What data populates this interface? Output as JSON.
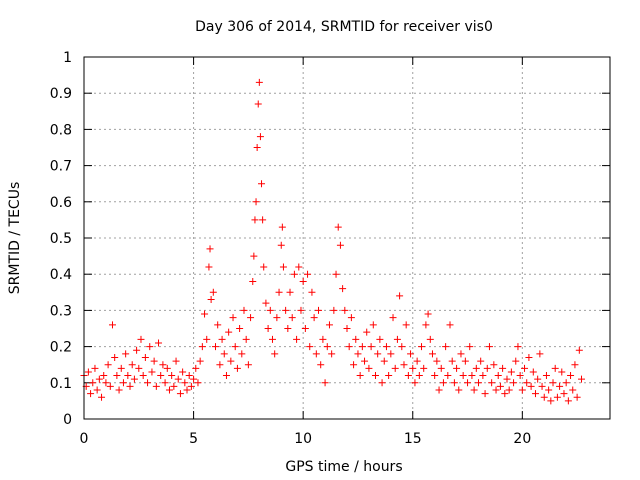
{
  "chart_data": {
    "type": "scatter",
    "title": "Day 306 of 2014, SRMTID for receiver vis0",
    "xlabel": "GPS time / hours",
    "ylabel": "SRMTID / TECUs",
    "xlim": [
      0,
      24
    ],
    "ylim": [
      0,
      1
    ],
    "xticks": [
      0,
      5,
      10,
      15,
      20
    ],
    "yticks": [
      0,
      0.1,
      0.2,
      0.3,
      0.4,
      0.5,
      0.6,
      0.7,
      0.8,
      0.9,
      1
    ],
    "xtick_labels": [
      "0",
      "5",
      "10",
      "15",
      "20"
    ],
    "ytick_labels": [
      "0",
      "0.1",
      "0.2",
      "0.3",
      "0.4",
      "0.5",
      "0.6",
      "0.7",
      "0.8",
      "0.9",
      "1"
    ],
    "grid": true,
    "marker": "+",
    "color": "#ff0000",
    "series": [
      {
        "name": "vis0",
        "points": [
          [
            0.0,
            0.12
          ],
          [
            0.1,
            0.09
          ],
          [
            0.2,
            0.13
          ],
          [
            0.3,
            0.07
          ],
          [
            0.4,
            0.1
          ],
          [
            0.5,
            0.14
          ],
          [
            0.6,
            0.08
          ],
          [
            0.7,
            0.11
          ],
          [
            0.8,
            0.06
          ],
          [
            0.9,
            0.12
          ],
          [
            1.0,
            0.1
          ],
          [
            1.1,
            0.15
          ],
          [
            1.2,
            0.09
          ],
          [
            1.3,
            0.26
          ],
          [
            1.4,
            0.17
          ],
          [
            1.5,
            0.12
          ],
          [
            1.6,
            0.08
          ],
          [
            1.7,
            0.14
          ],
          [
            1.8,
            0.1
          ],
          [
            1.9,
            0.18
          ],
          [
            2.0,
            0.12
          ],
          [
            2.1,
            0.09
          ],
          [
            2.2,
            0.15
          ],
          [
            2.3,
            0.11
          ],
          [
            2.4,
            0.19
          ],
          [
            2.5,
            0.14
          ],
          [
            2.6,
            0.22
          ],
          [
            2.7,
            0.12
          ],
          [
            2.8,
            0.17
          ],
          [
            2.9,
            0.1
          ],
          [
            3.0,
            0.2
          ],
          [
            3.1,
            0.13
          ],
          [
            3.2,
            0.16
          ],
          [
            3.3,
            0.09
          ],
          [
            3.4,
            0.21
          ],
          [
            3.5,
            0.12
          ],
          [
            3.6,
            0.15
          ],
          [
            3.7,
            0.1
          ],
          [
            3.8,
            0.14
          ],
          [
            3.9,
            0.08
          ],
          [
            4.0,
            0.12
          ],
          [
            4.1,
            0.09
          ],
          [
            4.2,
            0.16
          ],
          [
            4.3,
            0.11
          ],
          [
            4.4,
            0.07
          ],
          [
            4.5,
            0.13
          ],
          [
            4.6,
            0.1
          ],
          [
            4.7,
            0.08
          ],
          [
            4.8,
            0.12
          ],
          [
            4.9,
            0.09
          ],
          [
            5.0,
            0.11
          ],
          [
            5.1,
            0.14
          ],
          [
            5.2,
            0.1
          ],
          [
            5.3,
            0.16
          ],
          [
            5.4,
            0.2
          ],
          [
            5.5,
            0.29
          ],
          [
            5.6,
            0.22
          ],
          [
            5.7,
            0.42
          ],
          [
            5.75,
            0.47
          ],
          [
            5.8,
            0.33
          ],
          [
            5.9,
            0.35
          ],
          [
            6.0,
            0.2
          ],
          [
            6.1,
            0.26
          ],
          [
            6.2,
            0.15
          ],
          [
            6.3,
            0.22
          ],
          [
            6.4,
            0.18
          ],
          [
            6.5,
            0.12
          ],
          [
            6.6,
            0.24
          ],
          [
            6.7,
            0.16
          ],
          [
            6.8,
            0.28
          ],
          [
            6.9,
            0.2
          ],
          [
            7.0,
            0.14
          ],
          [
            7.1,
            0.25
          ],
          [
            7.2,
            0.18
          ],
          [
            7.3,
            0.3
          ],
          [
            7.4,
            0.22
          ],
          [
            7.5,
            0.15
          ],
          [
            7.6,
            0.28
          ],
          [
            7.7,
            0.38
          ],
          [
            7.75,
            0.45
          ],
          [
            7.8,
            0.55
          ],
          [
            7.85,
            0.6
          ],
          [
            7.9,
            0.75
          ],
          [
            7.95,
            0.87
          ],
          [
            8.0,
            0.93
          ],
          [
            8.05,
            0.78
          ],
          [
            8.1,
            0.65
          ],
          [
            8.15,
            0.55
          ],
          [
            8.2,
            0.42
          ],
          [
            8.3,
            0.32
          ],
          [
            8.4,
            0.25
          ],
          [
            8.5,
            0.3
          ],
          [
            8.6,
            0.22
          ],
          [
            8.7,
            0.18
          ],
          [
            8.8,
            0.28
          ],
          [
            8.9,
            0.35
          ],
          [
            9.0,
            0.48
          ],
          [
            9.05,
            0.53
          ],
          [
            9.1,
            0.42
          ],
          [
            9.2,
            0.3
          ],
          [
            9.3,
            0.25
          ],
          [
            9.4,
            0.35
          ],
          [
            9.5,
            0.28
          ],
          [
            9.6,
            0.4
          ],
          [
            9.7,
            0.22
          ],
          [
            9.8,
            0.42
          ],
          [
            9.9,
            0.3
          ],
          [
            10.0,
            0.38
          ],
          [
            10.1,
            0.25
          ],
          [
            10.2,
            0.4
          ],
          [
            10.3,
            0.2
          ],
          [
            10.4,
            0.35
          ],
          [
            10.5,
            0.28
          ],
          [
            10.6,
            0.18
          ],
          [
            10.7,
            0.3
          ],
          [
            10.8,
            0.15
          ],
          [
            10.9,
            0.22
          ],
          [
            11.0,
            0.1
          ],
          [
            11.1,
            0.2
          ],
          [
            11.2,
            0.26
          ],
          [
            11.3,
            0.18
          ],
          [
            11.4,
            0.3
          ],
          [
            11.5,
            0.4
          ],
          [
            11.6,
            0.53
          ],
          [
            11.7,
            0.48
          ],
          [
            11.8,
            0.36
          ],
          [
            11.9,
            0.3
          ],
          [
            12.0,
            0.25
          ],
          [
            12.1,
            0.2
          ],
          [
            12.2,
            0.28
          ],
          [
            12.3,
            0.15
          ],
          [
            12.4,
            0.22
          ],
          [
            12.5,
            0.18
          ],
          [
            12.6,
            0.12
          ],
          [
            12.7,
            0.2
          ],
          [
            12.8,
            0.16
          ],
          [
            12.9,
            0.24
          ],
          [
            13.0,
            0.14
          ],
          [
            13.1,
            0.2
          ],
          [
            13.2,
            0.26
          ],
          [
            13.3,
            0.12
          ],
          [
            13.4,
            0.18
          ],
          [
            13.5,
            0.22
          ],
          [
            13.6,
            0.1
          ],
          [
            13.7,
            0.16
          ],
          [
            13.8,
            0.2
          ],
          [
            13.9,
            0.12
          ],
          [
            14.0,
            0.18
          ],
          [
            14.1,
            0.28
          ],
          [
            14.2,
            0.14
          ],
          [
            14.3,
            0.22
          ],
          [
            14.4,
            0.34
          ],
          [
            14.5,
            0.2
          ],
          [
            14.6,
            0.15
          ],
          [
            14.7,
            0.26
          ],
          [
            14.8,
            0.12
          ],
          [
            14.9,
            0.18
          ],
          [
            15.0,
            0.14
          ],
          [
            15.1,
            0.1
          ],
          [
            15.2,
            0.16
          ],
          [
            15.3,
            0.12
          ],
          [
            15.4,
            0.2
          ],
          [
            15.5,
            0.14
          ],
          [
            15.6,
            0.26
          ],
          [
            15.7,
            0.29
          ],
          [
            15.8,
            0.22
          ],
          [
            15.9,
            0.18
          ],
          [
            16.0,
            0.12
          ],
          [
            16.1,
            0.16
          ],
          [
            16.2,
            0.08
          ],
          [
            16.3,
            0.14
          ],
          [
            16.4,
            0.1
          ],
          [
            16.5,
            0.2
          ],
          [
            16.6,
            0.12
          ],
          [
            16.7,
            0.26
          ],
          [
            16.8,
            0.16
          ],
          [
            16.9,
            0.1
          ],
          [
            17.0,
            0.14
          ],
          [
            17.1,
            0.08
          ],
          [
            17.2,
            0.18
          ],
          [
            17.3,
            0.12
          ],
          [
            17.4,
            0.16
          ],
          [
            17.5,
            0.1
          ],
          [
            17.6,
            0.2
          ],
          [
            17.7,
            0.12
          ],
          [
            17.8,
            0.08
          ],
          [
            17.9,
            0.14
          ],
          [
            18.0,
            0.1
          ],
          [
            18.1,
            0.16
          ],
          [
            18.2,
            0.12
          ],
          [
            18.3,
            0.07
          ],
          [
            18.4,
            0.14
          ],
          [
            18.5,
            0.2
          ],
          [
            18.6,
            0.1
          ],
          [
            18.7,
            0.15
          ],
          [
            18.8,
            0.08
          ],
          [
            18.9,
            0.12
          ],
          [
            19.0,
            0.09
          ],
          [
            19.1,
            0.14
          ],
          [
            19.2,
            0.07
          ],
          [
            19.3,
            0.11
          ],
          [
            19.4,
            0.08
          ],
          [
            19.5,
            0.13
          ],
          [
            19.6,
            0.1
          ],
          [
            19.7,
            0.16
          ],
          [
            19.8,
            0.2
          ],
          [
            19.9,
            0.12
          ],
          [
            20.0,
            0.08
          ],
          [
            20.1,
            0.14
          ],
          [
            20.2,
            0.1
          ],
          [
            20.3,
            0.17
          ],
          [
            20.4,
            0.09
          ],
          [
            20.5,
            0.13
          ],
          [
            20.6,
            0.07
          ],
          [
            20.7,
            0.11
          ],
          [
            20.8,
            0.18
          ],
          [
            20.9,
            0.09
          ],
          [
            21.0,
            0.06
          ],
          [
            21.1,
            0.12
          ],
          [
            21.2,
            0.08
          ],
          [
            21.3,
            0.05
          ],
          [
            21.4,
            0.1
          ],
          [
            21.5,
            0.14
          ],
          [
            21.6,
            0.06
          ],
          [
            21.7,
            0.09
          ],
          [
            21.8,
            0.13
          ],
          [
            21.9,
            0.07
          ],
          [
            22.0,
            0.1
          ],
          [
            22.1,
            0.05
          ],
          [
            22.2,
            0.12
          ],
          [
            22.3,
            0.08
          ],
          [
            22.4,
            0.15
          ],
          [
            22.5,
            0.06
          ],
          [
            22.6,
            0.19
          ],
          [
            22.7,
            0.11
          ]
        ]
      }
    ]
  }
}
